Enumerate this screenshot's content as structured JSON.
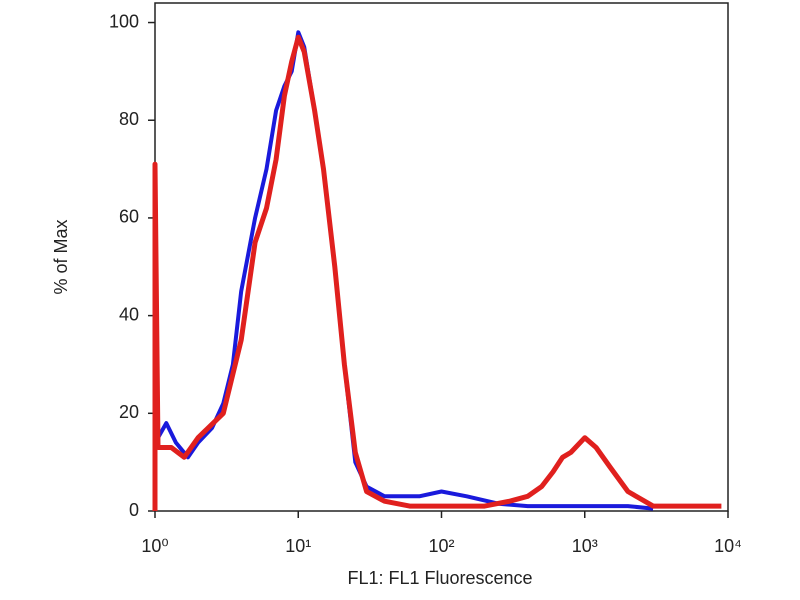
{
  "chart_data": {
    "type": "line",
    "xlabel": "FL1: FL1 Fluorescence",
    "ylabel": "% of Max",
    "xscale": "log",
    "xlim": [
      1,
      10000
    ],
    "ylim": [
      0,
      104
    ],
    "xticks": [
      {
        "value": 1,
        "label": "10⁰"
      },
      {
        "value": 10,
        "label": "10¹"
      },
      {
        "value": 100,
        "label": "10²"
      },
      {
        "value": 1000,
        "label": "10³"
      },
      {
        "value": 10000,
        "label": "10⁴"
      }
    ],
    "yticks": [
      0,
      20,
      40,
      60,
      80,
      100
    ],
    "series": [
      {
        "color": "#1a1adc",
        "x": [
          1.05,
          1.2,
          1.4,
          1.7,
          2,
          2.5,
          3,
          3.5,
          4,
          5,
          6,
          7,
          8,
          9,
          10,
          11,
          13,
          15,
          18,
          21,
          25,
          30,
          40,
          70,
          100,
          150,
          250,
          400,
          1000,
          2000,
          3000
        ],
        "values": [
          15,
          18,
          14,
          11,
          14,
          17,
          22,
          30,
          45,
          60,
          70,
          82,
          87,
          90,
          98,
          95,
          82,
          70,
          50,
          30,
          10,
          5,
          3,
          3,
          4,
          3,
          1.5,
          1,
          1,
          1,
          0.5
        ]
      },
      {
        "color": "#e0201e",
        "x": [
          1,
          1,
          1.05,
          1.3,
          1.6,
          2,
          3,
          4,
          5,
          6,
          7,
          8,
          9,
          10,
          11,
          13,
          15,
          18,
          21,
          25,
          30,
          40,
          60,
          100,
          200,
          300,
          400,
          500,
          600,
          700,
          800,
          1000,
          1200,
          1500,
          2000,
          3000,
          5000,
          9000
        ],
        "values": [
          0,
          71,
          13,
          13,
          11,
          15,
          20,
          35,
          55,
          62,
          72,
          85,
          92,
          97,
          94,
          82,
          70,
          50,
          30,
          12,
          4,
          2,
          1,
          1,
          1,
          2,
          3,
          5,
          8,
          11,
          12,
          15,
          13,
          9,
          4,
          1,
          1,
          1
        ]
      }
    ]
  }
}
